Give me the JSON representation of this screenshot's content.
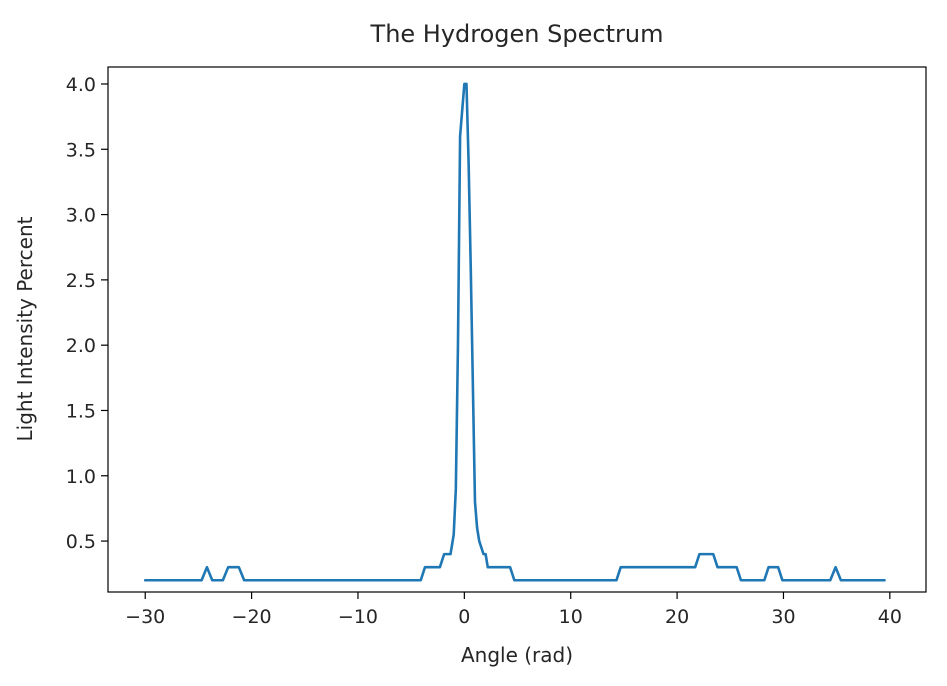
{
  "chart_data": {
    "type": "line",
    "title": "The Hydrogen Spectrum",
    "xlabel": "Angle (rad)",
    "ylabel": "Light Intensity Percent",
    "xlim": [
      -33.5,
      43.4
    ],
    "ylim": [
      0.11,
      4.13
    ],
    "xticks": [
      -30,
      -20,
      -10,
      0,
      10,
      20,
      30,
      40
    ],
    "xtick_labels": [
      "−30",
      "−20",
      "−10",
      "0",
      "10",
      "20",
      "30",
      "40"
    ],
    "yticks": [
      0.5,
      1.0,
      1.5,
      2.0,
      2.5,
      3.0,
      3.5,
      4.0
    ],
    "ytick_labels": [
      "0.5",
      "1.0",
      "1.5",
      "2.0",
      "2.5",
      "3.0",
      "3.5",
      "4.0"
    ],
    "grid": false,
    "line_color": "#1f77b4",
    "series": [
      {
        "x": [
          -30,
          -24.7,
          -24.2,
          -23.7,
          -22.7,
          -22.2,
          -21.2,
          -20.7,
          -10,
          -4.1,
          -3.7,
          -2.3,
          -1.9,
          -1.3,
          -1.0,
          -0.8,
          -0.6,
          -0.4,
          -0.2,
          0.0,
          0.2,
          0.4,
          0.6,
          0.8,
          1.0,
          1.2,
          1.4,
          1.8,
          2.0,
          2.2,
          2.6,
          4.3,
          4.7,
          10,
          14.3,
          14.7,
          21.7,
          22.1,
          23.4,
          23.8,
          25.6,
          26.0,
          28.2,
          28.6,
          29.5,
          29.9,
          34.4,
          34.9,
          35.4,
          39.5
        ],
        "y": [
          0.2,
          0.2,
          0.3,
          0.2,
          0.2,
          0.3,
          0.3,
          0.2,
          0.2,
          0.2,
          0.3,
          0.3,
          0.4,
          0.4,
          0.55,
          0.9,
          2.0,
          3.6,
          3.8,
          4.0,
          4.0,
          3.4,
          2.6,
          1.7,
          0.8,
          0.6,
          0.5,
          0.4,
          0.4,
          0.3,
          0.3,
          0.3,
          0.2,
          0.2,
          0.2,
          0.3,
          0.3,
          0.4,
          0.4,
          0.3,
          0.3,
          0.2,
          0.2,
          0.3,
          0.3,
          0.2,
          0.2,
          0.3,
          0.2,
          0.2
        ]
      }
    ]
  }
}
